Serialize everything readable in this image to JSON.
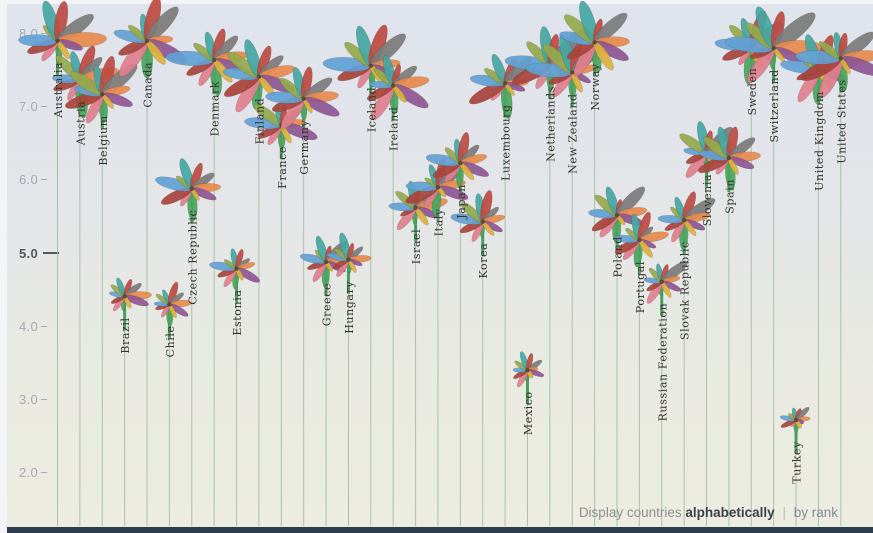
{
  "chart_data": {
    "type": "scatter",
    "glyph": "flower",
    "description_visible_text_only": "Each country is drawn as a flower whose stem height encodes its overall index value; 11 colored petals per flower.",
    "categories": [
      "Australia",
      "Austria",
      "Belgium",
      "Brazil",
      "Canada",
      "Chile",
      "Czech Republic",
      "Denmark",
      "Estonia",
      "Finland",
      "France",
      "Germany",
      "Greece",
      "Hungary",
      "Iceland",
      "Ireland",
      "Israel",
      "Italy",
      "Japan",
      "Korea",
      "Luxembourg",
      "Mexico",
      "Netherlands",
      "New Zealand",
      "Norway",
      "Poland",
      "Portugal",
      "Russian Federation",
      "Slovak Republic",
      "Slovenia",
      "Spain",
      "Sweden",
      "Switzerland",
      "Turkey",
      "United Kingdom",
      "United States"
    ],
    "values": [
      7.92,
      7.39,
      7.19,
      4.43,
      7.92,
      4.32,
      5.9,
      7.66,
      4.81,
      7.43,
      6.77,
      7.13,
      4.9,
      4.93,
      7.58,
      7.31,
      5.64,
      5.92,
      6.25,
      5.45,
      7.34,
      3.42,
      7.59,
      7.49,
      7.9,
      5.54,
      5.2,
      4.63,
      5.47,
      6.39,
      6.32,
      7.84,
      7.82,
      2.74,
      7.52,
      7.68
    ],
    "xlabel": "",
    "ylabel": "",
    "ylim": [
      1.5,
      8.4
    ],
    "y_axis": {
      "ticks": [
        "8.0",
        "7.0",
        "6.0",
        "5.0",
        "4.0",
        "3.0",
        "2.0"
      ],
      "emphasized": "5.0"
    },
    "sort_order": "alphabetical",
    "petals_per_flower": 11,
    "petal_colors": [
      "#4aa55e",
      "#df7f8e",
      "#a8433c",
      "#62a1d4",
      "#94a94c",
      "#44a6a2",
      "#bd4a42",
      "#7b7b7b",
      "#e68a4d",
      "#8e5693",
      "#ddb13f"
    ],
    "colors": {
      "background_top": "#dfe3ec",
      "background_bottom": "#ecece0",
      "bottom_bar": "#2e3c50",
      "stem": "#45a15c",
      "gridline": "#9dc0a3",
      "tick_label": "#a6a8b5",
      "tick_label_major": "#55575f",
      "country_label": "#38342e"
    }
  },
  "footer": {
    "label": "Display countries",
    "option_alphabetical": "alphabetically",
    "separator": "|",
    "option_rank": "by rank"
  }
}
